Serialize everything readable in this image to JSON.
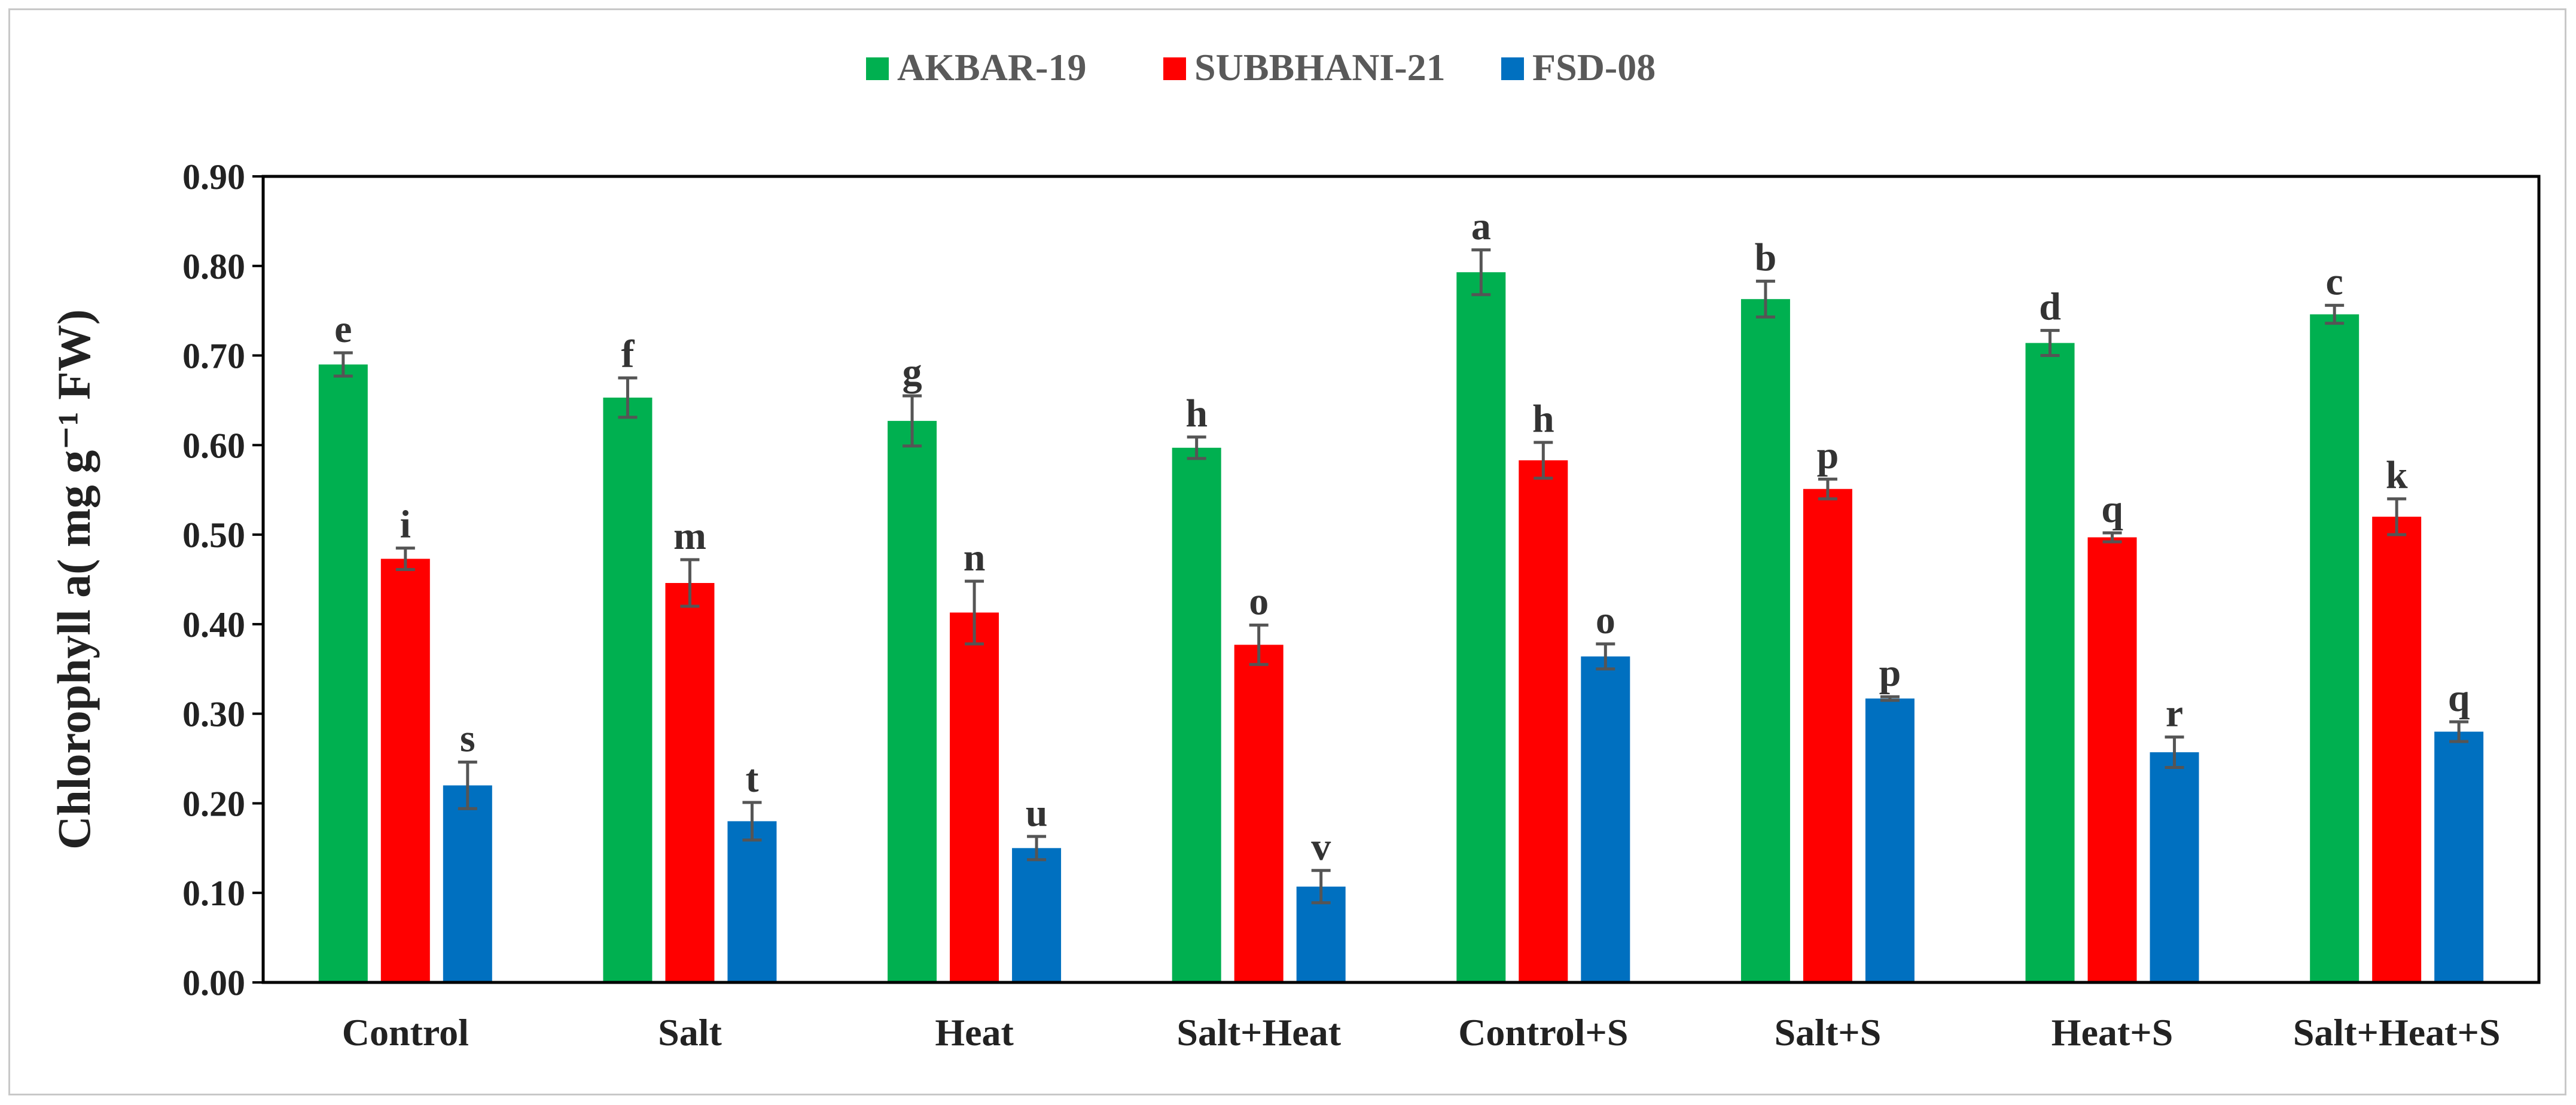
{
  "chart_data": {
    "type": "bar",
    "title": "",
    "xlabel": "",
    "ylabel": "Chlorophyll a( mg g⁻¹ FW)",
    "ylim": [
      0,
      0.9
    ],
    "yticks": [
      "0.00",
      "0.10",
      "0.20",
      "0.30",
      "0.40",
      "0.50",
      "0.60",
      "0.70",
      "0.80",
      "0.90"
    ],
    "legend_position": "top-center",
    "categories": [
      "Control",
      "Salt",
      "Heat",
      "Salt+Heat",
      "Control+S",
      "Salt+S",
      "Heat+S",
      "Salt+Heat+S"
    ],
    "series": [
      {
        "name": "AKBAR-19",
        "color": "#00b050",
        "values": [
          0.69,
          0.653,
          0.627,
          0.597,
          0.793,
          0.763,
          0.714,
          0.746
        ],
        "errors": [
          0.013,
          0.022,
          0.028,
          0.012,
          0.025,
          0.02,
          0.014,
          0.01
        ],
        "letters": [
          "e",
          "f",
          "g",
          "h",
          "a",
          "b",
          "d",
          "c"
        ]
      },
      {
        "name": "SUBBHANI-21",
        "color": "#ff0000",
        "values": [
          0.473,
          0.446,
          0.413,
          0.377,
          0.583,
          0.551,
          0.497,
          0.52
        ],
        "errors": [
          0.012,
          0.026,
          0.035,
          0.022,
          0.02,
          0.011,
          0.005,
          0.02
        ],
        "letters": [
          "i",
          "m",
          "n",
          "o",
          "h",
          "p",
          "q",
          "k"
        ]
      },
      {
        "name": "FSD-08",
        "color": "#0070c0",
        "values": [
          0.22,
          0.18,
          0.15,
          0.107,
          0.364,
          0.317,
          0.257,
          0.28
        ],
        "errors": [
          0.026,
          0.021,
          0.013,
          0.018,
          0.014,
          0.002,
          0.017,
          0.011
        ],
        "letters": [
          "s",
          "t",
          "u",
          "v",
          "o",
          "p",
          "r",
          "q"
        ]
      }
    ]
  }
}
